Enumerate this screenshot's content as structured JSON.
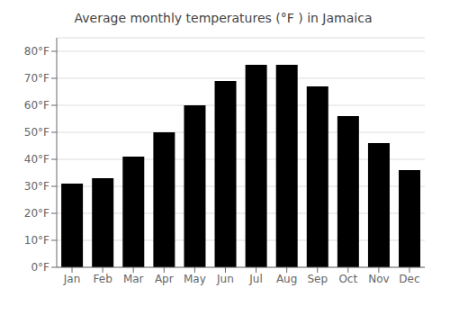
{
  "chart_data": {
    "type": "bar",
    "title": "Average monthly temperatures (°F ) in Jamaica",
    "categories": [
      "Jan",
      "Feb",
      "Mar",
      "Apr",
      "May",
      "Jun",
      "Jul",
      "Aug",
      "Sep",
      "Oct",
      "Nov",
      "Dec"
    ],
    "values": [
      31,
      33,
      41,
      50,
      60,
      69,
      75,
      75,
      67,
      56,
      46,
      36
    ],
    "ylim": [
      0,
      85
    ],
    "yticks": [
      {
        "value": 0,
        "label": "0°F"
      },
      {
        "value": 10,
        "label": "10°F"
      },
      {
        "value": 20,
        "label": "20°F"
      },
      {
        "value": 30,
        "label": "30°F"
      },
      {
        "value": 40,
        "label": "40°F"
      },
      {
        "value": 50,
        "label": "50°F"
      },
      {
        "value": 60,
        "label": "60°F"
      },
      {
        "value": 70,
        "label": "70°F"
      },
      {
        "value": 80,
        "label": "80°F"
      }
    ],
    "grid": true
  }
}
